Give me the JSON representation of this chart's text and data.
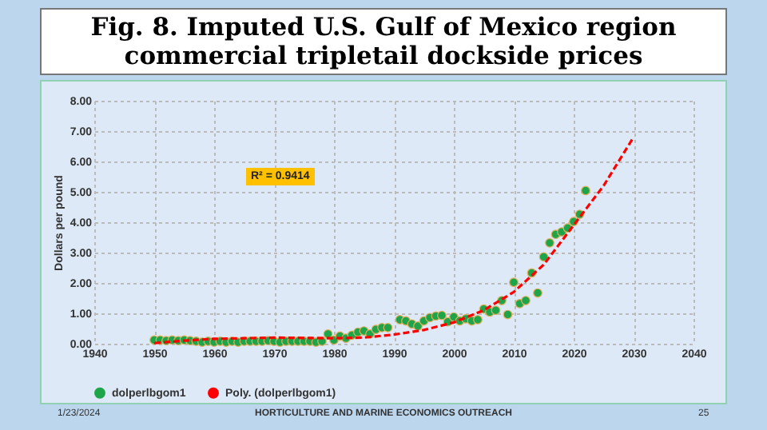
{
  "chart_data": {
    "type": "scatter",
    "title": "Fig. 8. Imputed U.S. Gulf of Mexico region commercial tripletail dockside prices",
    "ylabel": "Dollars per pound",
    "annotations": [
      "R² = 0.9414",
      "1/23/2024",
      "HORTICULTURE AND MARINE ECONOMICS OUTREACH",
      "25"
    ],
    "xlim": [
      1940,
      2040
    ],
    "xticks": [
      1940,
      1950,
      1960,
      1970,
      1980,
      1990,
      2000,
      2010,
      2020,
      2030,
      2040
    ],
    "ylim": [
      0,
      8
    ],
    "yticks": [
      {
        "value": 0,
        "label": "0.00"
      },
      {
        "value": 1,
        "label": "1.00"
      },
      {
        "value": 2,
        "label": "2.00"
      },
      {
        "value": 3,
        "label": "3.00"
      },
      {
        "value": 4,
        "label": "4.00"
      },
      {
        "value": 5,
        "label": "5.00"
      },
      {
        "value": 6,
        "label": "6.00"
      },
      {
        "value": 7,
        "label": "7.00"
      },
      {
        "value": 8,
        "label": "8.00"
      }
    ],
    "grid": true,
    "legend": "bottom",
    "series": [
      {
        "name": "dolperlbgom1",
        "type": "scatter",
        "color": "#1ea54a",
        "marker": "circle",
        "x": [
          1950,
          1951,
          1952,
          1953,
          1954,
          1955,
          1956,
          1957,
          1958,
          1959,
          1960,
          1961,
          1962,
          1963,
          1964,
          1965,
          1966,
          1967,
          1968,
          1969,
          1970,
          1971,
          1972,
          1973,
          1974,
          1975,
          1976,
          1977,
          1978,
          1979,
          1980,
          1981,
          1982,
          1983,
          1984,
          1985,
          1986,
          1987,
          1988,
          1989,
          1991,
          1992,
          1993,
          1994,
          1995,
          1996,
          1997,
          1998,
          1999,
          2000,
          2001,
          2002,
          2003,
          2004,
          2005,
          2006,
          2007,
          2008,
          2009,
          2010,
          2011,
          2012,
          2013,
          2014,
          2015,
          2016,
          2017,
          2018,
          2019,
          2020,
          2021,
          2022
        ],
        "values": [
          0.12,
          0.12,
          0.1,
          0.12,
          0.1,
          0.12,
          0.1,
          0.08,
          0.05,
          0.08,
          0.05,
          0.08,
          0.05,
          0.08,
          0.05,
          0.08,
          0.08,
          0.08,
          0.08,
          0.1,
          0.08,
          0.05,
          0.08,
          0.08,
          0.08,
          0.08,
          0.08,
          0.05,
          0.08,
          0.32,
          0.12,
          0.25,
          0.18,
          0.28,
          0.38,
          0.42,
          0.32,
          0.47,
          0.53,
          0.53,
          0.79,
          0.75,
          0.65,
          0.58,
          0.75,
          0.86,
          0.91,
          0.93,
          0.72,
          0.88,
          0.75,
          0.82,
          0.75,
          0.79,
          1.14,
          1.04,
          1.1,
          1.42,
          0.96,
          2.02,
          1.32,
          1.42,
          2.33,
          1.67,
          2.86,
          3.32,
          3.6,
          3.68,
          3.81,
          4.02,
          4.26,
          5.04
        ]
      },
      {
        "name": "Poly. (dolperlbgom1)",
        "type": "line",
        "color": "#ff0000",
        "line_style": "dashed",
        "x": [
          1950,
          1955,
          1960,
          1970,
          1980,
          1985,
          1990,
          1995,
          2000,
          2005,
          2010,
          2015,
          2020,
          2025,
          2030
        ],
        "values": [
          0.02,
          0.1,
          0.16,
          0.2,
          0.18,
          0.2,
          0.3,
          0.45,
          0.7,
          1.1,
          1.7,
          2.6,
          3.9,
          5.2,
          6.8
        ]
      }
    ]
  }
}
